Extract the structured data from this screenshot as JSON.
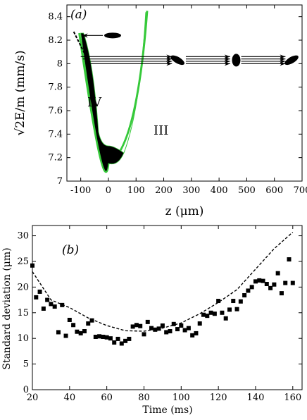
{
  "chart_data": [
    {
      "panel": "(a)",
      "type": "line",
      "xlabel": "z (μm)",
      "ylabel": "√2E/m (mm/s)",
      "xlim": [
        -150,
        700
      ],
      "ylim": [
        7.0,
        8.5
      ],
      "x_ticks": [
        "-100",
        "0",
        "100",
        "200",
        "300",
        "400",
        "500",
        "600",
        "700"
      ],
      "y_ticks": [
        "7",
        "7.2",
        "7.4",
        "7.6",
        "7.8",
        "8",
        "8.2",
        "8.4"
      ],
      "regions": [
        "IV",
        "III"
      ],
      "band": {
        "color_outer": "#36c93a",
        "color_inner": "#000000",
        "vertex": [
          0,
          7.15
        ],
        "inner_top": [
          [
            -100,
            8.26
          ],
          [
            0,
            7.3
          ]
        ],
        "outer_top": [
          [
            140,
            8.45
          ]
        ]
      },
      "arrows": {
        "left_arrow_y": 8.24,
        "stream_rows_y": [
          8.06,
          8.04,
          8.02,
          8.0
        ],
        "segments": [
          [
            -100,
            230
          ],
          [
            280,
            440
          ],
          [
            480,
            640
          ]
        ]
      }
    },
    {
      "panel": "(b)",
      "type": "scatter",
      "xlabel": "Time (ms)",
      "ylabel": "Standard deviation (μm)",
      "xlim": [
        20,
        165
      ],
      "ylim": [
        0,
        32
      ],
      "x_ticks": [
        "20",
        "40",
        "60",
        "80",
        "100",
        "120",
        "140",
        "160"
      ],
      "y_ticks": [
        "0",
        "5",
        "10",
        "15",
        "20",
        "25",
        "30"
      ],
      "series": [
        {
          "style": "square-markers",
          "x": [
            20,
            22,
            24,
            26,
            28,
            30,
            32,
            34,
            36,
            38,
            40,
            42,
            44,
            46,
            48,
            50,
            52,
            54,
            56,
            58,
            60,
            62,
            64,
            66,
            68,
            70,
            72,
            74,
            76,
            78,
            80,
            82,
            84,
            86,
            88,
            90,
            92,
            94,
            96,
            98,
            100,
            102,
            104,
            106,
            108,
            110,
            112,
            114,
            116,
            118,
            120,
            122,
            124,
            126,
            128,
            130,
            132,
            134,
            136,
            138,
            140,
            142,
            144,
            146,
            148,
            150,
            152,
            154,
            156,
            158,
            160
          ],
          "y": [
            24.2,
            18.0,
            19.1,
            15.8,
            17.5,
            16.7,
            16.2,
            11.2,
            16.5,
            10.5,
            13.6,
            12.6,
            11.3,
            11.0,
            11.4,
            12.9,
            13.5,
            10.3,
            10.4,
            10.3,
            10.2,
            10.0,
            9.2,
            9.9,
            9.0,
            9.5,
            9.9,
            12.3,
            12.6,
            12.4,
            10.8,
            13.2,
            12.0,
            11.7,
            11.9,
            12.5,
            11.2,
            11.4,
            12.8,
            11.8,
            12.5,
            11.6,
            12.0,
            10.6,
            11.0,
            12.9,
            14.6,
            14.4,
            15.0,
            14.8,
            17.3,
            15.0,
            13.9,
            15.6,
            17.3,
            15.7,
            17.2,
            18.4,
            19.3,
            20.0,
            21.1,
            21.3,
            21.2,
            20.6,
            19.8,
            20.5,
            22.7,
            18.8,
            20.8,
            25.4,
            20.8
          ]
        },
        {
          "style": "dashed-line",
          "x": [
            20,
            30,
            40,
            50,
            60,
            70,
            80,
            90,
            100,
            110,
            120,
            130,
            140,
            150,
            160
          ],
          "y": [
            23.0,
            17.5,
            16.0,
            14.0,
            12.5,
            11.5,
            11.4,
            12.0,
            13.0,
            14.8,
            17.0,
            19.5,
            23.5,
            27.5,
            30.7
          ]
        }
      ]
    }
  ]
}
